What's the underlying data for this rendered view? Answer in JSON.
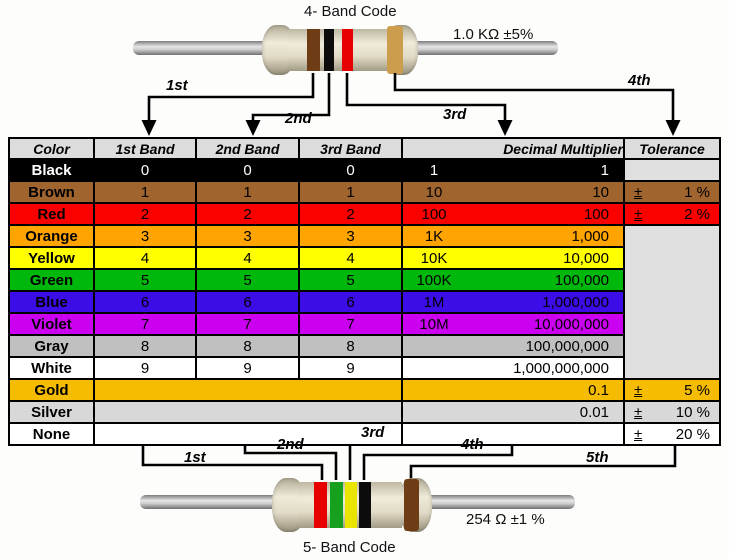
{
  "top": {
    "title": "4- Band Code",
    "value_label": "1.0 KΩ  ±5%",
    "arrow_labels": [
      "1st",
      "2nd",
      "3rd",
      "4th"
    ],
    "band_colors": [
      "brown",
      "black",
      "red",
      "gold"
    ]
  },
  "bottom": {
    "title": "5- Band Code",
    "value_label": "254 Ω  ±1 %",
    "arrow_labels": [
      "1st",
      "2nd",
      "3rd",
      "4th",
      "5th"
    ],
    "band_colors": [
      "red",
      "green",
      "yellow",
      "black",
      "brown"
    ]
  },
  "table": {
    "headers": [
      "Color",
      "1st Band",
      "2nd Band",
      "3rd Band",
      "Decimal Multiplier",
      "Tolerance"
    ],
    "tolerance_sign": "±",
    "empty_cell_bg": "#e0e0e0",
    "header_bg": "#dcdcdc",
    "rows": [
      {
        "color": "Black",
        "bg": "#000000",
        "fg": "#ffffff",
        "b1": "0",
        "b2": "0",
        "b3": "0",
        "mult_short": "1",
        "mult_long": "1",
        "tol": "",
        "tol_bg": "#e0e0e0"
      },
      {
        "color": "Brown",
        "bg": "#a0642e",
        "fg": "#000000",
        "b1": "1",
        "b2": "1",
        "b3": "1",
        "mult_short": "10",
        "mult_long": "10",
        "tol": "1 %"
      },
      {
        "color": "Red",
        "bg": "#fb0000",
        "fg": "#000000",
        "b1": "2",
        "b2": "2",
        "b3": "2",
        "mult_short": "100",
        "mult_long": "100",
        "tol": "2 %"
      },
      {
        "color": "Orange",
        "bg": "#ffa400",
        "fg": "#000000",
        "b1": "3",
        "b2": "3",
        "b3": "3",
        "mult_short": "1K",
        "mult_long": "1,000",
        "tol_span": 7
      },
      {
        "color": "Yellow",
        "bg": "#ffff00",
        "fg": "#000000",
        "b1": "4",
        "b2": "4",
        "b3": "4",
        "mult_short": "10K",
        "mult_long": "10,000",
        "tol_skip": true
      },
      {
        "color": "Green",
        "bg": "#00b80b",
        "fg": "#000000",
        "b1": "5",
        "b2": "5",
        "b3": "5",
        "mult_short": "100K",
        "mult_long": "100,000",
        "tol_skip": true
      },
      {
        "color": "Blue",
        "bg": "#3d0de8",
        "fg": "#000000",
        "b1": "6",
        "b2": "6",
        "b3": "6",
        "mult_short": "1M",
        "mult_long": "1,000,000",
        "tol_skip": true
      },
      {
        "color": "Violet",
        "bg": "#cc00f0",
        "fg": "#000000",
        "b1": "7",
        "b2": "7",
        "b3": "7",
        "mult_short": "10M",
        "mult_long": "10,000,000",
        "tol_skip": true
      },
      {
        "color": "Gray",
        "bg": "#c0c0c0",
        "fg": "#000000",
        "b1": "8",
        "b2": "8",
        "b3": "8",
        "mult_short": "",
        "mult_long": "100,000,000",
        "tol_skip": true
      },
      {
        "color": "White",
        "bg": "#ffffff",
        "fg": "#000000",
        "b1": "9",
        "b2": "9",
        "b3": "9",
        "mult_short": "",
        "mult_long": "1,000,000,000",
        "tol_skip": true
      },
      {
        "color": "Gold",
        "bg": "#f6bc02",
        "fg": "#000000",
        "merged": true,
        "mult_short": "",
        "mult_long": "0.1",
        "tol": "5 %"
      },
      {
        "color": "Silver",
        "bg": "#d8d8d8",
        "fg": "#000000",
        "merged": true,
        "mult_short": "",
        "mult_long": "0.01",
        "tol": "10 %"
      },
      {
        "color": "None",
        "bg": "#ffffff",
        "fg": "#000000",
        "merged": true,
        "mult_short": "",
        "mult_long": "",
        "tol": "20 %"
      }
    ]
  },
  "band_palette": {
    "brown": "#6f3d15",
    "black": "#0c0c0c",
    "red": "#e60000",
    "gold": "#cb9d4d",
    "green": "#17a01e",
    "yellow": "#e9e400"
  }
}
